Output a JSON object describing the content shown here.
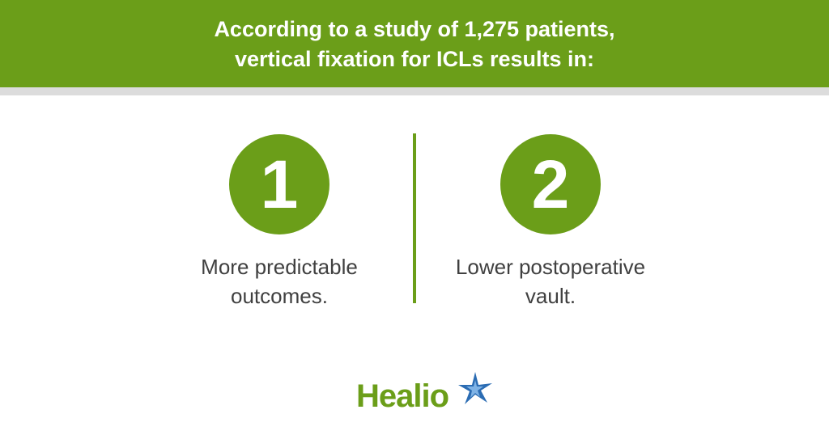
{
  "header": {
    "title_lines": [
      "According to a study of 1,275 patients,",
      "vertical fixation for ICLs results in:"
    ]
  },
  "items": [
    {
      "number": "1",
      "text_lines": [
        "More predictable",
        "outcomes."
      ]
    },
    {
      "number": "2",
      "text_lines": [
        "Lower postoperative",
        "vault."
      ]
    }
  ],
  "logo": {
    "text": "Healio"
  }
}
